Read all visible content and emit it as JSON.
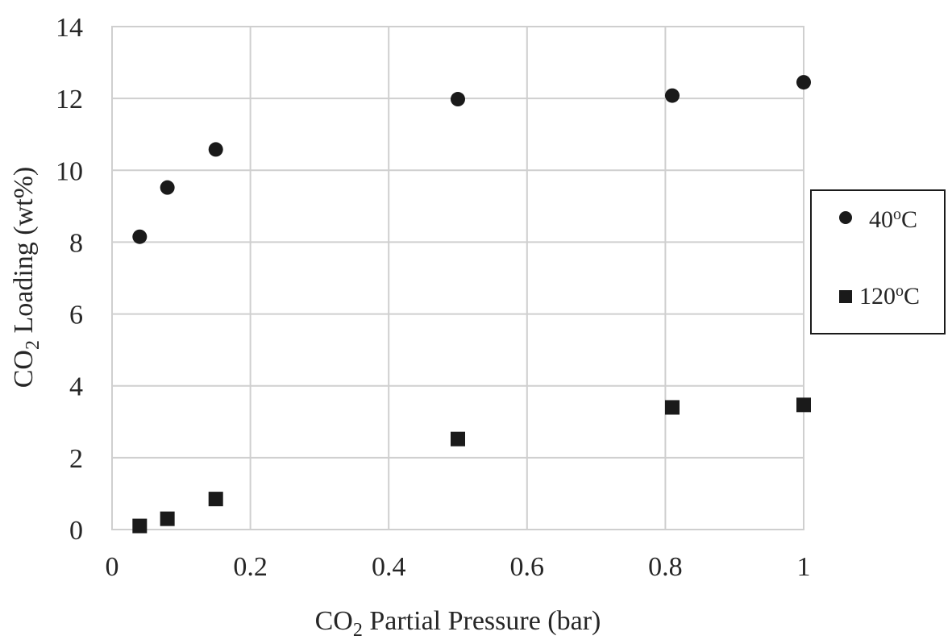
{
  "chart_data": {
    "type": "scatter",
    "xlabel": "CO2 Partial Pressure (bar)",
    "xlabel_parts": {
      "pre": "CO",
      "sub": "2",
      "post": " Partial Pressure (bar)"
    },
    "ylabel": "CO2 Loading (wt%)",
    "ylabel_parts": {
      "pre": "CO",
      "sub": "2",
      "post": " Loading (wt%)"
    },
    "xlim": [
      0,
      1
    ],
    "ylim": [
      0,
      14
    ],
    "x_ticks": [
      0,
      0.2,
      0.4,
      0.6,
      0.8,
      1
    ],
    "x_tick_labels": [
      "0",
      "0.2",
      "0.4",
      "0.6",
      "0.8",
      "1"
    ],
    "y_ticks": [
      0,
      2,
      4,
      6,
      8,
      10,
      12,
      14
    ],
    "y_tick_labels": [
      "0",
      "2",
      "4",
      "6",
      "8",
      "10",
      "12",
      "14"
    ],
    "grid": true,
    "legend_position": "right",
    "series": [
      {
        "name": "40oC",
        "name_parts": {
          "pre": "40",
          "sup": "o",
          "post": "C"
        },
        "marker": "circle",
        "color": "#1a1a1a",
        "points": [
          {
            "x": 0.04,
            "y": 8.15
          },
          {
            "x": 0.08,
            "y": 9.52
          },
          {
            "x": 0.15,
            "y": 10.58
          },
          {
            "x": 0.5,
            "y": 11.98
          },
          {
            "x": 0.81,
            "y": 12.08
          },
          {
            "x": 1.0,
            "y": 12.45
          }
        ]
      },
      {
        "name": "120oC",
        "name_parts": {
          "pre": "120",
          "sup": "o",
          "post": "C"
        },
        "marker": "square",
        "color": "#1a1a1a",
        "points": [
          {
            "x": 0.04,
            "y": 0.1
          },
          {
            "x": 0.08,
            "y": 0.3
          },
          {
            "x": 0.15,
            "y": 0.85
          },
          {
            "x": 0.5,
            "y": 2.52
          },
          {
            "x": 0.81,
            "y": 3.4
          },
          {
            "x": 1.0,
            "y": 3.47
          }
        ]
      }
    ]
  }
}
